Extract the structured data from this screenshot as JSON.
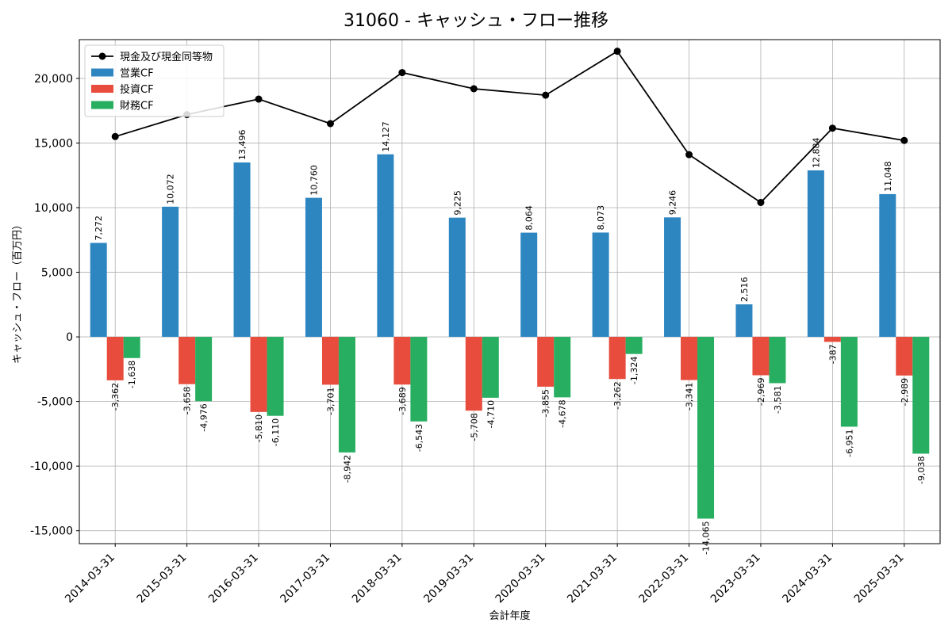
{
  "chart_data": {
    "type": "bar",
    "title": "31060 - キャッシュ・フロー推移",
    "xlabel": "会計年度",
    "ylabel": "キャッシュ・フロー（百万円）",
    "ylim": [
      -16000,
      23000
    ],
    "yticks": [
      -15000,
      -10000,
      -5000,
      0,
      5000,
      10000,
      15000,
      20000
    ],
    "ytick_labels": [
      "-15,000",
      "-10,000",
      "-5,000",
      "0",
      "5,000",
      "10,000",
      "15,000",
      "20,000"
    ],
    "grid": true,
    "legend_position": "top-left",
    "categories": [
      "2014-03-31",
      "2015-03-31",
      "2016-03-31",
      "2017-03-31",
      "2018-03-31",
      "2019-03-31",
      "2020-03-31",
      "2021-03-31",
      "2022-03-31",
      "2023-03-31",
      "2024-03-31",
      "2025-03-31"
    ],
    "series": [
      {
        "name": "営業CF",
        "kind": "bar",
        "color": "#2e86c1",
        "values": [
          7272,
          10072,
          13496,
          10760,
          14127,
          9225,
          8064,
          8073,
          9246,
          2516,
          12884,
          11048
        ],
        "labels": [
          "7,272",
          "10,072",
          "13,496",
          "10,760",
          "14,127",
          "9,225",
          "8,064",
          "8,073",
          "9,246",
          "2,516",
          "12,884",
          "11,048"
        ]
      },
      {
        "name": "投資CF",
        "kind": "bar",
        "color": "#e74c3c",
        "values": [
          -3362,
          -3658,
          -5810,
          -3701,
          -3689,
          -5708,
          -3855,
          -3262,
          -3341,
          -2969,
          -387,
          -2989
        ],
        "labels": [
          "-3,362",
          "-3,658",
          "-5,810",
          "-3,701",
          "-3,689",
          "-5,708",
          "-3,855",
          "-3,262",
          "-3,341",
          "-2,969",
          "-387",
          "-2,989"
        ]
      },
      {
        "name": "財務CF",
        "kind": "bar",
        "color": "#27ae60",
        "values": [
          -1638,
          -4976,
          -6110,
          -8942,
          -6543,
          -4710,
          -4678,
          -1324,
          -14065,
          -3581,
          -6951,
          -9038
        ],
        "labels": [
          "-1,638",
          "-4,976",
          "-6,110",
          "-8,942",
          "-6,543",
          "-4,710",
          "-4,678",
          "-1,324",
          "-14,065",
          "-3,581",
          "-6,951",
          "-9,038"
        ]
      },
      {
        "name": "現金及び現金同等物",
        "kind": "line",
        "color": "#000000",
        "values": [
          15500,
          17200,
          18400,
          16500,
          20450,
          19200,
          18700,
          22100,
          14100,
          10400,
          16150,
          15200
        ]
      }
    ]
  }
}
